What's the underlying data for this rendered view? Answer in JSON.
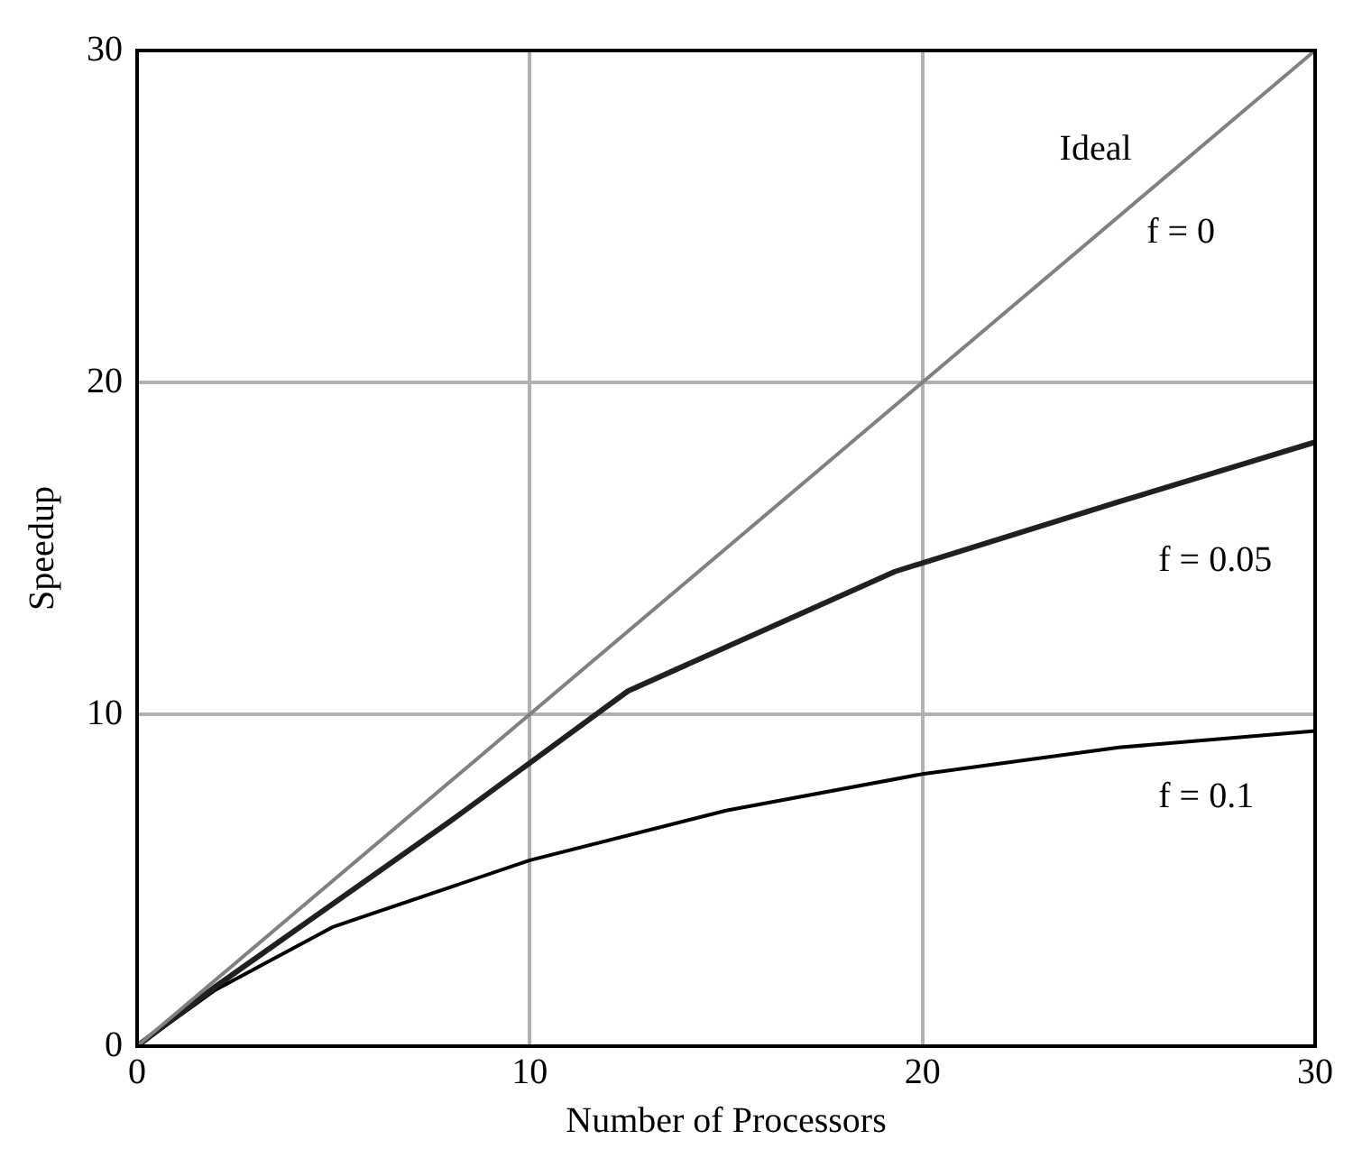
{
  "chart_data": {
    "type": "line",
    "xlabel": "Number of Processors",
    "ylabel": "Speedup",
    "xlim": [
      0,
      30
    ],
    "ylim": [
      0,
      30
    ],
    "xticks": [
      0,
      10,
      20,
      30
    ],
    "yticks": [
      0,
      10,
      20,
      30
    ],
    "grid": true,
    "legend": false,
    "marker": "none",
    "line_style": "solid",
    "series": [
      {
        "color": "#808080",
        "x": [
          0,
          30
        ],
        "values": [
          0,
          30
        ]
      },
      {
        "color": "#202020",
        "x": [
          0,
          2,
          8,
          12.5,
          19.3,
          25,
          30
        ],
        "values": [
          0,
          1.8,
          6.8,
          10.7,
          14.3,
          16.4,
          18.2
        ]
      },
      {
        "color": "#000000",
        "x": [
          0,
          2,
          5,
          10,
          15,
          20,
          25,
          30
        ],
        "values": [
          0,
          1.7,
          3.6,
          5.6,
          7.1,
          8.2,
          9,
          9.5
        ]
      }
    ],
    "annotations": [
      "Ideal",
      "f = 0",
      "f = 0.05",
      "f = 0.1"
    ]
  }
}
